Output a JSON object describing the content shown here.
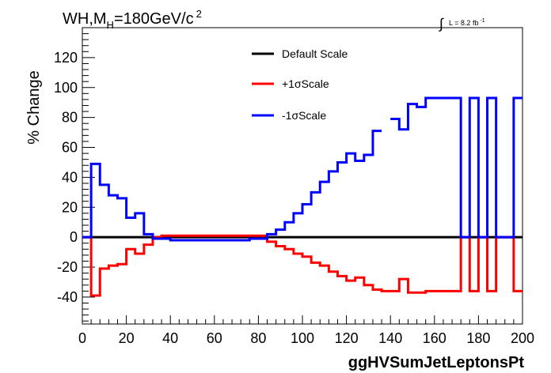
{
  "chart_data": {
    "type": "line",
    "title": "",
    "header": {
      "process": "WH,M",
      "subscript": "H",
      "mass": "=180GeV/c",
      "superscript": "2"
    },
    "luminosity": {
      "integral": "∫",
      "text": "L = 8.2 fb",
      "sup": "-1"
    },
    "xlabel": "ggHVSumJetLeptonsPt",
    "ylabel": "% Change",
    "xlim": [
      0,
      200
    ],
    "ylim": [
      -58,
      140
    ],
    "x_ticks": [
      "0",
      "20",
      "40",
      "60",
      "80",
      "100",
      "120",
      "140",
      "160",
      "180",
      "200"
    ],
    "y_ticks": [
      "-40",
      "-20",
      "0",
      "20",
      "40",
      "60",
      "80",
      "100",
      "120"
    ],
    "grid": false,
    "legend_position": "top-center",
    "bin_edges": [
      0,
      4,
      8,
      12,
      16,
      20,
      24,
      28,
      32,
      36,
      40,
      44,
      48,
      52,
      56,
      60,
      64,
      68,
      72,
      76,
      80,
      84,
      88,
      92,
      96,
      100,
      104,
      108,
      112,
      116,
      120,
      124,
      128,
      132,
      136,
      140,
      144,
      148,
      152,
      156,
      160,
      164,
      168,
      172,
      176,
      180,
      184,
      188,
      192,
      196,
      200
    ],
    "series": [
      {
        "name": "Default Scale",
        "color": "#000000",
        "values": [
          0,
          0,
          0,
          0,
          0,
          0,
          0,
          0,
          0,
          0,
          0,
          0,
          0,
          0,
          0,
          0,
          0,
          0,
          0,
          0,
          0,
          0,
          0,
          0,
          0,
          0,
          0,
          0,
          0,
          0,
          0,
          0,
          0,
          0,
          0,
          0,
          0,
          0,
          0,
          0,
          0,
          0,
          0,
          0,
          0,
          0,
          0,
          0,
          0,
          0
        ]
      },
      {
        "name": "+1σScale",
        "color": "#ff0000",
        "values": [
          0,
          -39,
          -21,
          -19,
          -18,
          -8,
          -11,
          -5,
          0,
          1,
          1,
          1,
          1,
          1,
          1,
          1,
          1,
          1,
          1,
          1,
          1,
          -3,
          -6,
          -8,
          -11,
          -13,
          -17,
          -19,
          -23,
          -26,
          -29,
          -27,
          -32,
          -35,
          -36,
          -36,
          -28,
          -37,
          -37,
          -36,
          -36,
          -36,
          -36,
          0,
          -36,
          0,
          -36,
          0,
          0,
          -36
        ]
      },
      {
        "name": "-1σScale",
        "color": "#0000ff",
        "values": [
          0,
          49,
          35,
          28,
          26,
          13,
          16,
          2,
          -1,
          -1,
          -2,
          -2,
          -2,
          -2,
          -2,
          -2,
          -2,
          -2,
          -2,
          -1,
          -1,
          2,
          5,
          10,
          16,
          22,
          30,
          37,
          44,
          50,
          56,
          51,
          55,
          71,
          null,
          79,
          72,
          89,
          87,
          93,
          93,
          93,
          93,
          0,
          93,
          0,
          93,
          0,
          0,
          93
        ]
      }
    ]
  }
}
